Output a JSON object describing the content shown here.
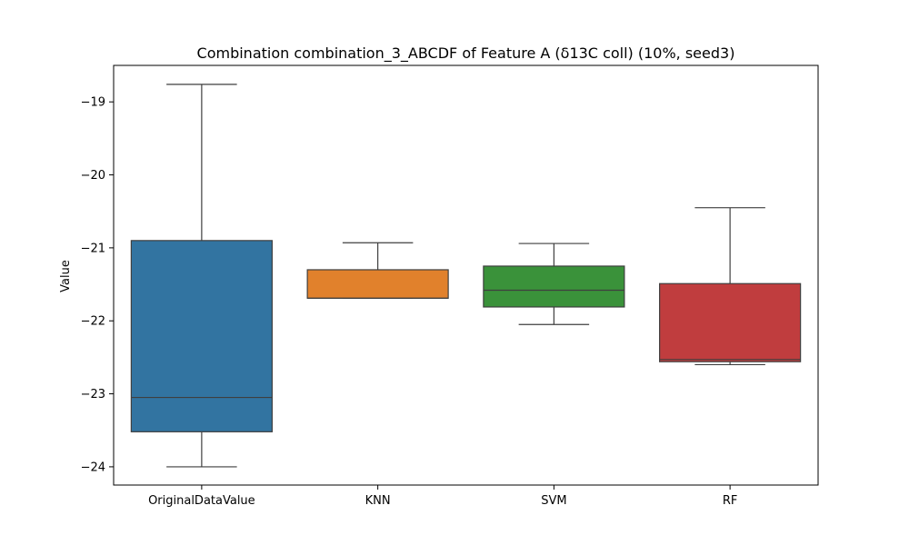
{
  "chart_data": {
    "type": "box",
    "title": "Combination combination_3_ABCDF of Feature A (δ13C coll) (10%, seed3)",
    "xlabel": "",
    "ylabel": "Value",
    "ylim": [
      -24.25,
      -18.5
    ],
    "yticks": [
      -19,
      -20,
      -21,
      -22,
      -23,
      -24
    ],
    "ytick_labels": [
      "−19",
      "−20",
      "−21",
      "−22",
      "−23",
      "−24"
    ],
    "grid": false,
    "categories": [
      "OriginalDataValue",
      "KNN",
      "SVM",
      "RF"
    ],
    "boxes": [
      {
        "label": "OriginalDataValue",
        "color": "#3274a1",
        "whislo": -24.0,
        "q1": -23.52,
        "med": -23.05,
        "q3": -20.9,
        "whishi": -18.76
      },
      {
        "label": "KNN",
        "color": "#e1812c",
        "whislo": -21.69,
        "q1": -21.69,
        "med": -21.69,
        "q3": -21.3,
        "whishi": -20.93
      },
      {
        "label": "SVM",
        "color": "#3a923a",
        "whislo": -22.05,
        "q1": -21.81,
        "med": -21.58,
        "q3": -21.25,
        "whishi": -20.94
      },
      {
        "label": "RF",
        "color": "#c03d3e",
        "whislo": -22.6,
        "q1": -22.56,
        "med": -22.53,
        "q3": -21.49,
        "whishi": -20.45
      }
    ]
  }
}
